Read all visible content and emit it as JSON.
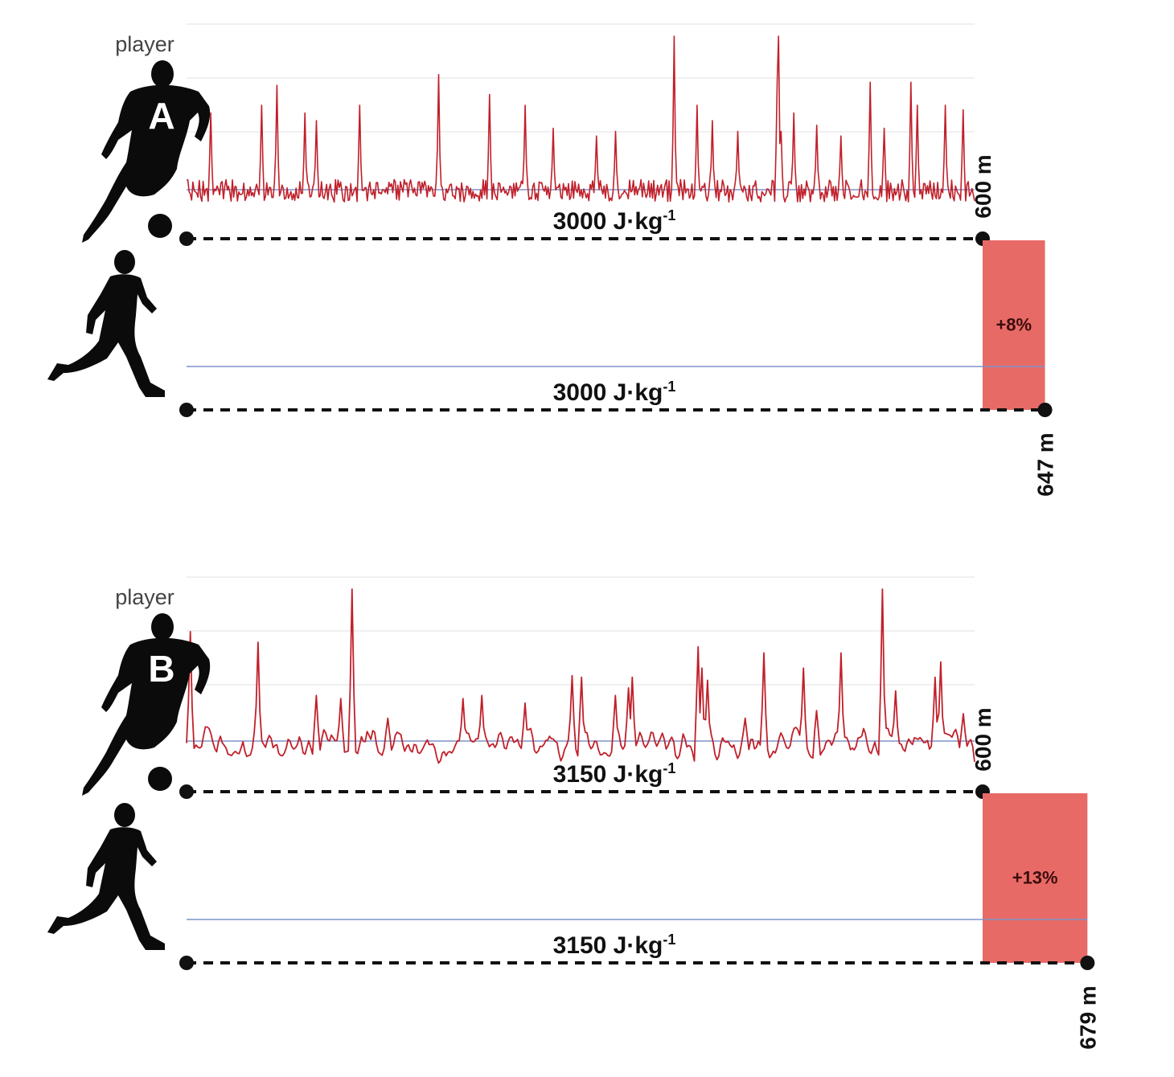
{
  "colors": {
    "trace": "#c0202a",
    "baseline": "#7f93c9",
    "grid": "#ececec",
    "bar": "#e86a67",
    "silhouette": "#0b0b0b"
  },
  "icons": [
    "soccer-player-silhouette-icon",
    "soccer-ball-icon",
    "runner-silhouette-icon"
  ],
  "chart_data": [
    {
      "type": "line",
      "player_caption": "player",
      "player_letter": "A",
      "soccer_distance_label": "600 m",
      "soccer_energy_label": "3000 J·kg",
      "energy_unit_superscript": "-1",
      "running_energy_label": "3000 J·kg",
      "running_distance_label": "647 m",
      "difference_label": "+8%",
      "soccer_distance_m": 600,
      "running_distance_m": 647,
      "energy_J_per_kg": 3000,
      "difference_percent": 8,
      "trace_peaks": [
        [
          0.03,
          0.5
        ],
        [
          0.095,
          0.55
        ],
        [
          0.115,
          0.68
        ],
        [
          0.15,
          0.5
        ],
        [
          0.165,
          0.45
        ],
        [
          0.22,
          0.55
        ],
        [
          0.32,
          0.75
        ],
        [
          0.385,
          0.62
        ],
        [
          0.43,
          0.55
        ],
        [
          0.465,
          0.4
        ],
        [
          0.52,
          0.35
        ],
        [
          0.545,
          0.38
        ],
        [
          0.618,
          1.0
        ],
        [
          0.648,
          0.55
        ],
        [
          0.668,
          0.45
        ],
        [
          0.7,
          0.38
        ],
        [
          0.75,
          0.72
        ],
        [
          0.755,
          0.38
        ],
        [
          0.77,
          0.5
        ],
        [
          0.752,
          1.0
        ],
        [
          0.8,
          0.42
        ],
        [
          0.83,
          0.35
        ],
        [
          0.867,
          0.7
        ],
        [
          0.886,
          0.4
        ],
        [
          0.92,
          0.7
        ],
        [
          0.928,
          0.55
        ],
        [
          0.963,
          0.55
        ],
        [
          0.985,
          0.52
        ]
      ],
      "trace_style": "dense"
    },
    {
      "type": "line",
      "player_caption": "player",
      "player_letter": "B",
      "soccer_distance_label": "600 m",
      "soccer_energy_label": "3150 J·kg",
      "energy_unit_superscript": "-1",
      "running_energy_label": "3150 J·kg",
      "running_distance_label": "679 m",
      "difference_label": "+13%",
      "soccer_distance_m": 600,
      "running_distance_m": 679,
      "energy_J_per_kg": 3150,
      "difference_percent": 13,
      "trace_peaks": [
        [
          0.005,
          0.72
        ],
        [
          0.09,
          0.65
        ],
        [
          0.165,
          0.3
        ],
        [
          0.195,
          0.28
        ],
        [
          0.21,
          1.0
        ],
        [
          0.255,
          0.15
        ],
        [
          0.35,
          0.28
        ],
        [
          0.375,
          0.3
        ],
        [
          0.43,
          0.25
        ],
        [
          0.49,
          0.43
        ],
        [
          0.5,
          0.42
        ],
        [
          0.545,
          0.3
        ],
        [
          0.565,
          0.42
        ],
        [
          0.56,
          0.35
        ],
        [
          0.655,
          0.48
        ],
        [
          0.66,
          0.4
        ],
        [
          0.71,
          0.15
        ],
        [
          0.65,
          0.62
        ],
        [
          0.733,
          0.58
        ],
        [
          0.783,
          0.48
        ],
        [
          0.8,
          0.2
        ],
        [
          0.83,
          0.58
        ],
        [
          0.884,
          1.0
        ],
        [
          0.9,
          0.33
        ],
        [
          0.95,
          0.42
        ],
        [
          0.958,
          0.52
        ],
        [
          0.985,
          0.18
        ]
      ],
      "trace_style": "sparse"
    }
  ]
}
